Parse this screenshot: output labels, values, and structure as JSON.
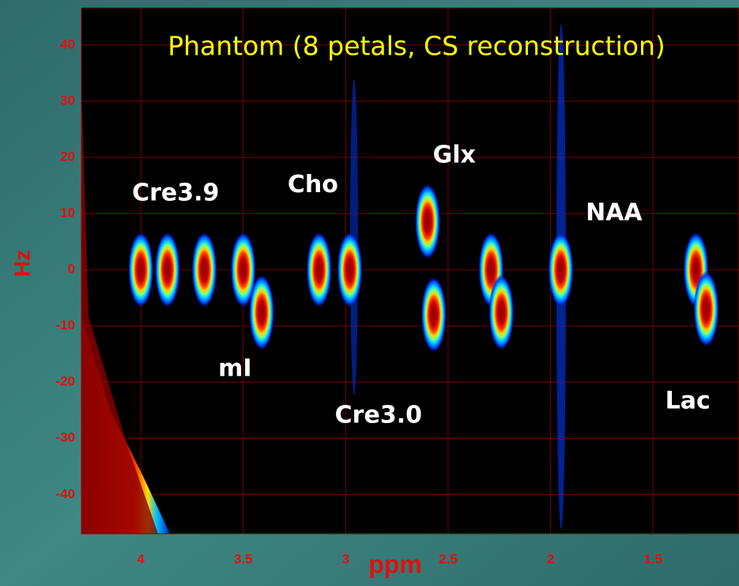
{
  "chart_data": {
    "type": "contour",
    "title": "Phantom (8 petals, CS reconstruction)",
    "x_label": "ppm",
    "y_label": "Hz",
    "xlim": [
      4.29,
      1.08
    ],
    "ylim": [
      -47,
      46.6
    ],
    "xticks": [
      4,
      3.5,
      3,
      2.5,
      2,
      1.5
    ],
    "yticks": [
      40,
      30,
      20,
      10,
      0,
      -10,
      -20,
      -30,
      -40
    ],
    "grid": true,
    "peaks": {
      "x": [
        4.0,
        3.87,
        3.69,
        3.5,
        3.41,
        3.13,
        2.98,
        2.6,
        2.57,
        2.29,
        2.24,
        1.95,
        1.29,
        1.24
      ],
      "y": [
        0,
        0,
        0,
        0,
        -7.6,
        0,
        0,
        8.6,
        -8,
        0,
        -7.6,
        0,
        0,
        -7
      ]
    },
    "annotations": [
      {
        "text": "Cre3.9",
        "x": 3.83,
        "y": 13.5
      },
      {
        "text": "Cho",
        "x": 3.16,
        "y": 15
      },
      {
        "text": "mI",
        "x": 3.54,
        "y": -17.7
      },
      {
        "text": "Cre3.0",
        "x": 2.84,
        "y": -26
      },
      {
        "text": "Glx",
        "x": 2.47,
        "y": 20.3
      },
      {
        "text": "NAA",
        "x": 1.69,
        "y": 10
      },
      {
        "text": "Lac",
        "x": 1.33,
        "y": -23.5
      }
    ]
  }
}
